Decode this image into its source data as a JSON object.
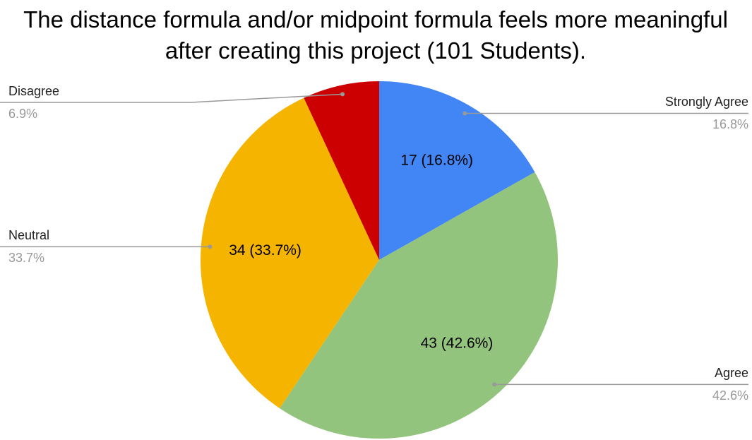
{
  "chart_data": {
    "type": "pie",
    "title": "The distance formula and/or midpoint formula feels more meaningful after creating this project (101 Students).",
    "categories": [
      "Strongly Agree",
      "Agree",
      "Neutral",
      "Disagree"
    ],
    "values": [
      17,
      43,
      34,
      7
    ],
    "value_labels": [
      "17 (16.8%)",
      "43 (42.6%)",
      "34 (33.7%)",
      null
    ],
    "percent_labels": [
      "16.8%",
      "42.6%",
      "33.7%",
      "6.9%"
    ],
    "colors": [
      "#4285f4",
      "#93c47d",
      "#f4b400",
      "#cc0000"
    ]
  }
}
